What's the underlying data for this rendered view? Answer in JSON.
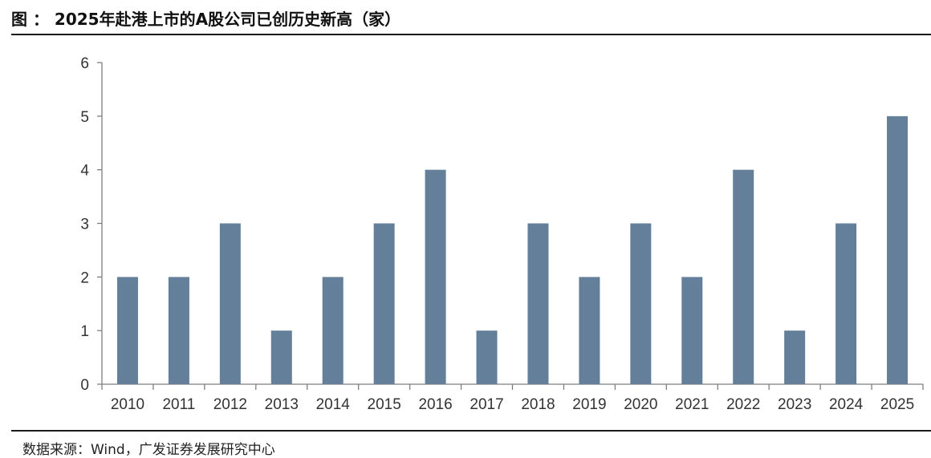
{
  "header": {
    "title": "图 ： 2025年赴港上市的A股公司已创历史新高（家）"
  },
  "footer": {
    "source": "数据来源：Wind，广发证券发展研究中心"
  },
  "colors": {
    "bar": "#647f99",
    "axis": "#7f7f7f",
    "rule": "#1a1a1a"
  },
  "chart_data": {
    "type": "bar",
    "categories": [
      "2010",
      "2011",
      "2012",
      "2013",
      "2014",
      "2015",
      "2016",
      "2017",
      "2018",
      "2019",
      "2020",
      "2021",
      "2022",
      "2023",
      "2024",
      "2025"
    ],
    "values": [
      2,
      2,
      3,
      1,
      2,
      3,
      4,
      1,
      3,
      2,
      3,
      2,
      4,
      1,
      3,
      5
    ],
    "ylim": [
      0,
      6
    ],
    "yticks": [
      0,
      1,
      2,
      3,
      4,
      5,
      6
    ],
    "grid": false,
    "legend": "none"
  }
}
